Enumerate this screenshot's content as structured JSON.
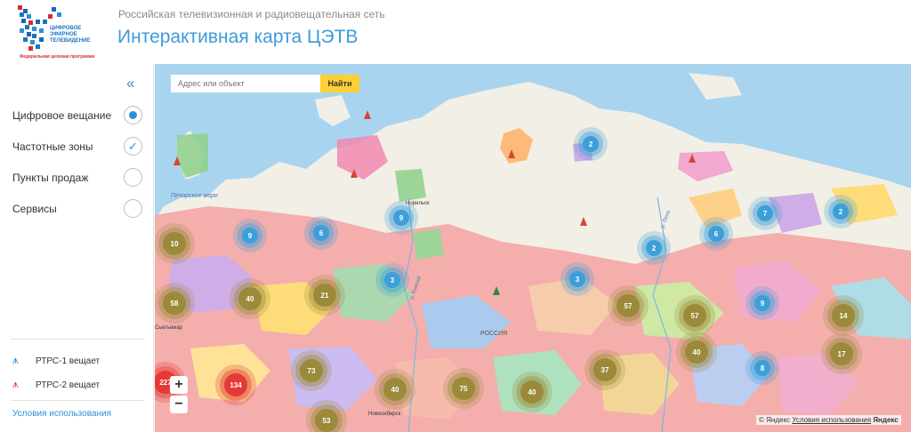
{
  "header": {
    "logo_text": "Цифровое эфирное телевидение",
    "logo_subtext": "Федеральная целевая программа",
    "subtitle": "Российская телевизионная и радиовещательная сеть",
    "title": "Интерактивная карта ЦЭТВ"
  },
  "sidebar": {
    "collapse_icon": "«",
    "layers": [
      {
        "label": "Цифровое вещание",
        "state": "radio-on"
      },
      {
        "label": "Частотные зоны",
        "state": "checked"
      },
      {
        "label": "Пункты продаж",
        "state": "off"
      },
      {
        "label": "Сервисы",
        "state": "off"
      }
    ],
    "legend": [
      {
        "label": "РТРС-1 вещает",
        "icon": "antenna-icon",
        "color": "#2f8fd6"
      },
      {
        "label": "РТРС-2 вещает",
        "icon": "antenna-icon",
        "color": "#e0463a"
      }
    ],
    "terms": "Условия использования"
  },
  "search": {
    "placeholder": "Адрес или объект",
    "button": "Найти"
  },
  "map": {
    "labels": {
      "pechora_sea": "Печорское море",
      "russia": "РОССИЯ",
      "norilsk": "Норильск",
      "yenisei": "р. Енисей",
      "lena": "р. Лена",
      "siktivkar": "Сыктывкар",
      "novosibirsk": "Новосибирск"
    },
    "zoom_in": "+",
    "zoom_out": "−",
    "copyright": "© Яндекс",
    "copyright_link": "Условия использования",
    "yandex": "Яндекс",
    "clusters": [
      {
        "count": "10",
        "kind": "olive"
      },
      {
        "count": "9",
        "kind": "blue"
      },
      {
        "count": "6",
        "kind": "blue"
      },
      {
        "count": "9",
        "kind": "blue"
      },
      {
        "count": "58",
        "kind": "olive"
      },
      {
        "count": "40",
        "kind": "olive"
      },
      {
        "count": "21",
        "kind": "olive"
      },
      {
        "count": "3",
        "kind": "blue"
      },
      {
        "count": "2",
        "kind": "blue"
      },
      {
        "count": "2",
        "kind": "blue"
      },
      {
        "count": "3",
        "kind": "blue"
      },
      {
        "count": "57",
        "kind": "olive"
      },
      {
        "count": "6",
        "kind": "blue"
      },
      {
        "count": "7",
        "kind": "blue"
      },
      {
        "count": "2",
        "kind": "blue"
      },
      {
        "count": "57",
        "kind": "olive"
      },
      {
        "count": "9",
        "kind": "blue"
      },
      {
        "count": "14",
        "kind": "olive"
      },
      {
        "count": "227",
        "kind": "red"
      },
      {
        "count": "134",
        "kind": "red"
      },
      {
        "count": "73",
        "kind": "olive"
      },
      {
        "count": "40",
        "kind": "olive"
      },
      {
        "count": "75",
        "kind": "olive"
      },
      {
        "count": "40",
        "kind": "olive"
      },
      {
        "count": "37",
        "kind": "olive"
      },
      {
        "count": "40",
        "kind": "olive"
      },
      {
        "count": "8",
        "kind": "blue"
      },
      {
        "count": "17",
        "kind": "olive"
      },
      {
        "count": "53",
        "kind": "olive"
      }
    ],
    "cluster_colors": {
      "blue": "#3c9fd9",
      "olive": "#9a8a3a",
      "red": "#e53935"
    }
  }
}
